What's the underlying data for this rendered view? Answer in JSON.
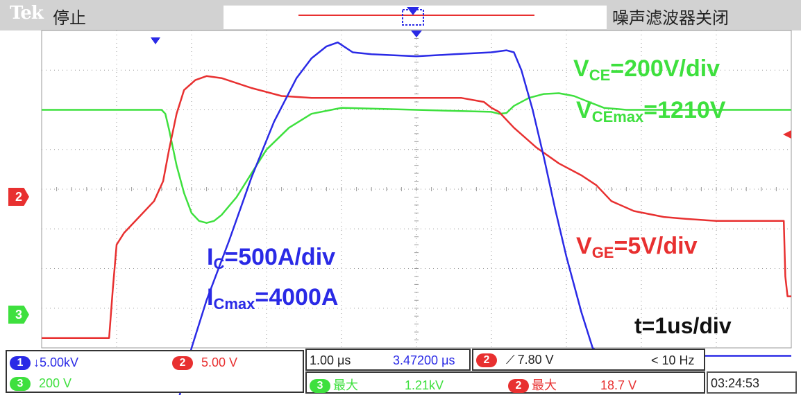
{
  "header": {
    "brand": "Tek",
    "status": "停止",
    "noise_filter": "噪声滤波器关闭"
  },
  "colors": {
    "ch1": "#2a2ae6",
    "ch2": "#e83030",
    "ch3": "#3ee03e",
    "grid": "#9a9a9a"
  },
  "markers": {
    "ch2": "2",
    "ch3": "3"
  },
  "annotations": {
    "vce": {
      "pre": "V",
      "sub": "CE",
      "post": "=200V/div"
    },
    "vcemax": {
      "pre": "V",
      "sub": "CEmax",
      "post": "=1210V"
    },
    "ic": {
      "pre": "I",
      "sub": "C",
      "post": "=500A/div"
    },
    "icmax": {
      "pre": "I",
      "sub": "Cmax",
      "post": "=4000A"
    },
    "vge": {
      "pre": "V",
      "sub": "GE",
      "post": "=5V/div"
    },
    "time": "t=1us/div"
  },
  "readouts": {
    "ch1_badge": "1",
    "ch1_scale": "5.00kV",
    "ch2_badge": "2",
    "ch2_scale": "5.00 V",
    "ch3_badge": "3",
    "ch3_scale": "200 V",
    "timebase": "1.00 μs",
    "position": "3.47200 μs",
    "trig_badge": "2",
    "trig_level": "7.80 V",
    "freq": "< 10 Hz",
    "max3_badge": "3",
    "max3_label": "最大",
    "max3_value": "1.21kV",
    "max2_badge": "2",
    "max2_label": "最大",
    "max2_value": "18.7 V",
    "clock": "03:24:53"
  },
  "chart_data": {
    "type": "line",
    "x_unit": "us",
    "xlim": [
      0,
      10
    ],
    "x_divisions": 10,
    "y_divisions": 8,
    "series": [
      {
        "channel": "ch3",
        "x": [
          0,
          1.6,
          1.65,
          1.7,
          1.8,
          1.9,
          2.0,
          2.1,
          2.2,
          2.3,
          2.4,
          2.6,
          2.8,
          3.0,
          3.3,
          3.6,
          4.0,
          5.0,
          6.0,
          6.1,
          6.2,
          6.3,
          6.5,
          6.7,
          6.9,
          7.1,
          7.3,
          7.5,
          7.8,
          8.5,
          10.0
        ],
        "y": [
          6.0,
          6.0,
          5.9,
          5.5,
          4.6,
          3.9,
          3.4,
          3.2,
          3.15,
          3.2,
          3.35,
          3.8,
          4.4,
          5.0,
          5.55,
          5.9,
          6.05,
          6.0,
          5.95,
          5.9,
          5.92,
          6.1,
          6.3,
          6.4,
          6.42,
          6.35,
          6.2,
          6.05,
          6.0,
          6.0,
          6.0
        ]
      },
      {
        "channel": "ch2",
        "x": [
          0,
          0.9,
          0.95,
          1.0,
          1.1,
          1.3,
          1.5,
          1.62,
          1.7,
          1.8,
          1.9,
          2.05,
          2.2,
          2.4,
          2.8,
          3.2,
          3.6,
          4.0,
          5.0,
          5.6,
          5.9,
          6.0,
          6.1,
          6.3,
          6.6,
          6.9,
          7.2,
          7.4,
          7.6,
          7.9,
          8.3,
          8.6,
          9.0,
          9.5,
          9.9,
          9.92,
          9.95,
          10.0
        ],
        "y": [
          0.25,
          0.25,
          1.5,
          2.6,
          2.9,
          3.3,
          3.7,
          4.2,
          5.0,
          5.9,
          6.5,
          6.75,
          6.85,
          6.8,
          6.55,
          6.35,
          6.3,
          6.3,
          6.3,
          6.3,
          6.2,
          6.05,
          5.95,
          5.55,
          5.05,
          4.65,
          4.35,
          4.1,
          3.7,
          3.45,
          3.3,
          3.25,
          3.2,
          3.2,
          3.2,
          1.8,
          1.3,
          1.3
        ]
      },
      {
        "channel": "ch1",
        "x": [
          0,
          1.8,
          2.0,
          2.2,
          2.5,
          2.8,
          3.1,
          3.4,
          3.6,
          3.8,
          3.95,
          4.15,
          4.4,
          5.0,
          5.5,
          6.0,
          6.2,
          6.3,
          6.4,
          6.55,
          6.7,
          6.85,
          7.0,
          7.2,
          7.35,
          7.5,
          8.0,
          9.0,
          10.0
        ],
        "y": [
          -1.5,
          -1.5,
          0.0,
          1.2,
          2.7,
          4.3,
          5.7,
          6.8,
          7.3,
          7.6,
          7.7,
          7.45,
          7.4,
          7.35,
          7.4,
          7.45,
          7.5,
          7.45,
          7.0,
          6.0,
          4.8,
          3.5,
          2.3,
          0.9,
          0.0,
          -0.2,
          -0.2,
          -0.2,
          -0.2
        ]
      }
    ]
  }
}
